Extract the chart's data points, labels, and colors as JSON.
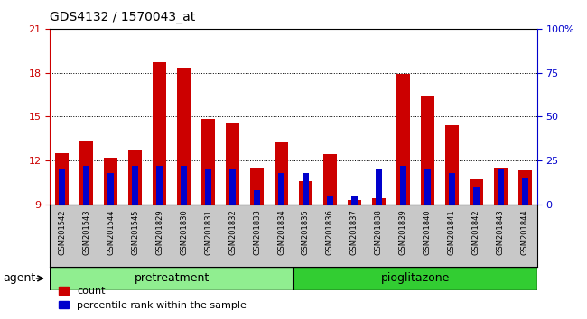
{
  "title": "GDS4132 / 1570043_at",
  "samples": [
    "GSM201542",
    "GSM201543",
    "GSM201544",
    "GSM201545",
    "GSM201829",
    "GSM201830",
    "GSM201831",
    "GSM201832",
    "GSM201833",
    "GSM201834",
    "GSM201835",
    "GSM201836",
    "GSM201837",
    "GSM201838",
    "GSM201839",
    "GSM201840",
    "GSM201841",
    "GSM201842",
    "GSM201843",
    "GSM201844"
  ],
  "count_values": [
    12.5,
    13.3,
    12.2,
    12.7,
    18.7,
    18.3,
    14.8,
    14.6,
    11.5,
    13.2,
    10.6,
    12.4,
    9.3,
    9.4,
    17.9,
    16.4,
    14.4,
    10.7,
    11.5,
    11.3
  ],
  "percentile_values": [
    20,
    22,
    18,
    22,
    22,
    22,
    20,
    20,
    8,
    18,
    18,
    5,
    5,
    20,
    22,
    20,
    18,
    10,
    20,
    15
  ],
  "bar_bottom": 9.0,
  "ylim_left": [
    9,
    21
  ],
  "ylim_right": [
    0,
    100
  ],
  "yticks_left": [
    9,
    12,
    15,
    18,
    21
  ],
  "yticks_right": [
    0,
    25,
    50,
    75,
    100
  ],
  "pre_count": 10,
  "pio_count": 10,
  "pretreatment_color": "#90EE90",
  "pioglitazone_color": "#32CD32",
  "agent_label": "agent",
  "pretreatment_label": "pretreatment",
  "pioglitazone_label": "pioglitazone",
  "red_color": "#CC0000",
  "blue_color": "#0000CC",
  "bg_color": "#C8C8C8",
  "left_axis_color": "#CC0000",
  "right_axis_color": "#0000CC",
  "legend_count": "count",
  "legend_percentile": "percentile rank within the sample",
  "bar_width": 0.55
}
